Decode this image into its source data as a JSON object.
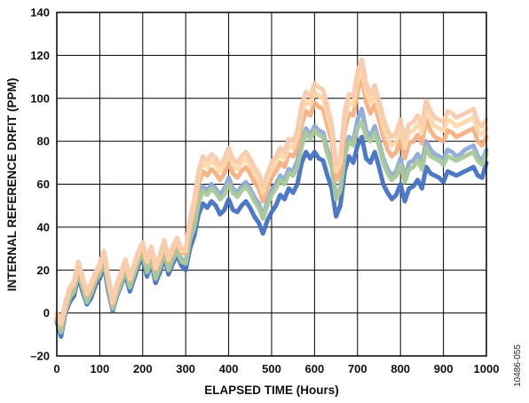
{
  "chart_data": {
    "type": "line",
    "title": "",
    "xlabel": "ELAPSED TIME (Hours)",
    "ylabel": "INTERNAL REFERENCE DRFIT (PPM)",
    "xlim": [
      0,
      1000
    ],
    "ylim": [
      -20,
      140
    ],
    "xticks": [
      0,
      100,
      200,
      300,
      400,
      500,
      600,
      700,
      800,
      900,
      1000
    ],
    "yticks": [
      -20,
      0,
      20,
      40,
      60,
      80,
      100,
      120,
      140
    ],
    "ytick_labels": [
      "–20",
      "0",
      "20",
      "40",
      "60",
      "80",
      "100",
      "120",
      "140"
    ],
    "grid": true,
    "legend": "none",
    "figure_id": "10486-055",
    "x": [
      0,
      10,
      20,
      30,
      40,
      50,
      60,
      70,
      80,
      90,
      100,
      110,
      120,
      130,
      140,
      150,
      160,
      170,
      180,
      190,
      200,
      210,
      220,
      230,
      240,
      250,
      260,
      270,
      280,
      290,
      300,
      310,
      320,
      330,
      340,
      350,
      360,
      370,
      380,
      390,
      400,
      410,
      420,
      430,
      440,
      450,
      460,
      470,
      480,
      490,
      500,
      510,
      520,
      530,
      540,
      550,
      560,
      570,
      580,
      590,
      600,
      610,
      620,
      630,
      640,
      650,
      660,
      670,
      680,
      690,
      700,
      710,
      720,
      730,
      740,
      750,
      760,
      770,
      780,
      790,
      800,
      810,
      820,
      830,
      840,
      850,
      860,
      870,
      880,
      890,
      900,
      910,
      920,
      930,
      940,
      950,
      960,
      970,
      980,
      990,
      1000
    ],
    "series": [
      {
        "color": "#4472c4",
        "values": [
          -4,
          -11,
          0,
          5,
          8,
          17,
          10,
          4,
          7,
          13,
          16,
          22,
          10,
          1,
          8,
          13,
          18,
          10,
          16,
          22,
          26,
          17,
          23,
          14,
          19,
          26,
          18,
          23,
          27,
          22,
          20,
          30,
          36,
          46,
          51,
          49,
          52,
          50,
          46,
          48,
          53,
          48,
          47,
          50,
          52,
          49,
          45,
          42,
          37,
          43,
          47,
          50,
          55,
          53,
          58,
          56,
          60,
          70,
          75,
          72,
          75,
          72,
          71,
          64,
          58,
          45,
          50,
          66,
          73,
          70,
          78,
          82,
          72,
          70,
          75,
          68,
          60,
          56,
          53,
          55,
          60,
          52,
          58,
          59,
          62,
          58,
          68,
          65,
          64,
          63,
          61,
          66,
          65,
          64,
          65,
          66,
          67,
          68,
          64,
          63,
          70
        ]
      },
      {
        "color": "#8fa9d8",
        "values": [
          -3,
          -8,
          2,
          8,
          11,
          20,
          13,
          6,
          10,
          15,
          19,
          25,
          13,
          3,
          10,
          15,
          21,
          13,
          19,
          25,
          29,
          20,
          26,
          17,
          22,
          29,
          21,
          26,
          30,
          25,
          24,
          35,
          42,
          53,
          59,
          57,
          60,
          58,
          55,
          58,
          63,
          58,
          56,
          59,
          61,
          58,
          54,
          51,
          45,
          52,
          57,
          60,
          64,
          62,
          67,
          66,
          71,
          80,
          86,
          83,
          87,
          85,
          84,
          76,
          70,
          54,
          58,
          75,
          82,
          80,
          90,
          95,
          85,
          82,
          87,
          80,
          72,
          67,
          64,
          66,
          72,
          63,
          70,
          71,
          74,
          70,
          80,
          76,
          74,
          73,
          72,
          76,
          75,
          73,
          74,
          76,
          77,
          78,
          73,
          71,
          76
        ]
      },
      {
        "color": "#a8c89a",
        "values": [
          -2,
          -9,
          1,
          7,
          10,
          19,
          12,
          5,
          9,
          15,
          18,
          24,
          12,
          2,
          9,
          14,
          20,
          12,
          18,
          24,
          28,
          19,
          25,
          16,
          21,
          28,
          20,
          25,
          29,
          24,
          23,
          34,
          40,
          51,
          57,
          55,
          58,
          56,
          53,
          55,
          60,
          56,
          54,
          57,
          59,
          56,
          52,
          49,
          44,
          50,
          55,
          58,
          62,
          60,
          65,
          64,
          68,
          78,
          84,
          81,
          85,
          83,
          82,
          74,
          68,
          53,
          57,
          73,
          80,
          78,
          86,
          89,
          82,
          80,
          84,
          78,
          70,
          65,
          62,
          64,
          69,
          61,
          67,
          68,
          71,
          67,
          77,
          73,
          72,
          71,
          69,
          73,
          72,
          71,
          72,
          73,
          74,
          75,
          71,
          69,
          74
        ]
      },
      {
        "color": "#f4b183",
        "values": [
          -1,
          -6,
          3,
          10,
          13,
          22,
          15,
          8,
          12,
          17,
          21,
          27,
          15,
          4,
          12,
          17,
          23,
          15,
          21,
          27,
          31,
          23,
          29,
          20,
          25,
          32,
          24,
          29,
          33,
          28,
          28,
          40,
          48,
          60,
          66,
          64,
          67,
          65,
          62,
          65,
          70,
          65,
          63,
          66,
          68,
          65,
          61,
          58,
          52,
          58,
          63,
          66,
          70,
          68,
          74,
          73,
          77,
          88,
          94,
          92,
          98,
          96,
          95,
          87,
          80,
          62,
          66,
          85,
          93,
          92,
          103,
          110,
          98,
          93,
          97,
          90,
          82,
          76,
          73,
          75,
          81,
          72,
          79,
          80,
          83,
          79,
          90,
          85,
          82,
          81,
          80,
          85,
          84,
          82,
          83,
          84,
          85,
          86,
          80,
          78,
          82
        ]
      },
      {
        "color": "#ffd8a8",
        "values": [
          -1,
          -5,
          4,
          11,
          14,
          23,
          16,
          9,
          13,
          18,
          22,
          28,
          16,
          5,
          13,
          18,
          24,
          16,
          22,
          28,
          32,
          24,
          30,
          21,
          26,
          33,
          25,
          30,
          34,
          29,
          29,
          42,
          51,
          63,
          70,
          68,
          71,
          69,
          66,
          69,
          74,
          69,
          67,
          70,
          72,
          69,
          65,
          62,
          56,
          62,
          67,
          70,
          74,
          72,
          78,
          77,
          82,
          93,
          99,
          97,
          103,
          101,
          100,
          92,
          85,
          66,
          70,
          90,
          98,
          97,
          108,
          114,
          103,
          98,
          102,
          95,
          87,
          81,
          78,
          80,
          86,
          77,
          84,
          85,
          88,
          84,
          95,
          90,
          87,
          86,
          85,
          90,
          89,
          87,
          88,
          89,
          90,
          91,
          85,
          83,
          86
        ]
      },
      {
        "color": "#f8cbad",
        "values": [
          0,
          -4,
          5,
          12,
          15,
          24,
          17,
          10,
          14,
          19,
          23,
          29,
          17,
          6,
          14,
          19,
          25,
          17,
          23,
          29,
          33,
          25,
          31,
          22,
          27,
          34,
          26,
          31,
          35,
          30,
          30,
          44,
          53,
          66,
          73,
          71,
          74,
          72,
          69,
          72,
          77,
          72,
          70,
          73,
          75,
          72,
          68,
          65,
          59,
          65,
          70,
          73,
          77,
          75,
          81,
          80,
          85,
          97,
          103,
          101,
          107,
          105,
          104,
          96,
          88,
          69,
          73,
          94,
          102,
          101,
          112,
          118,
          107,
          102,
          106,
          99,
          91,
          85,
          82,
          84,
          90,
          81,
          88,
          89,
          92,
          88,
          99,
          94,
          91,
          90,
          89,
          94,
          93,
          91,
          92,
          93,
          94,
          95,
          89,
          87,
          90
        ]
      }
    ]
  }
}
